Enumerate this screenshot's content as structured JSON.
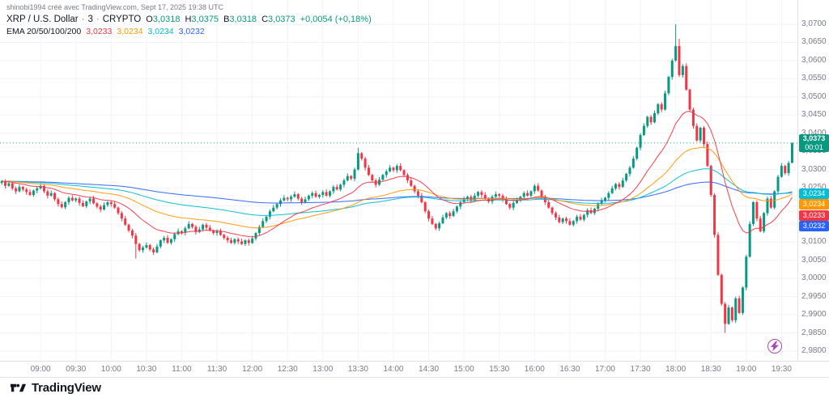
{
  "attribution": "shinobi1994 créé avec TradingView.com, Sept 17, 2025 19:38 UTC",
  "legend": {
    "symbol": "XRP / U.S. Dollar",
    "separator": "·",
    "interval": "3",
    "market": "CRYPTO",
    "ohlc": [
      {
        "label": "O",
        "value": "3,0318"
      },
      {
        "label": "H",
        "value": "3,0375"
      },
      {
        "label": "B",
        "value": "3,0318"
      },
      {
        "label": "C",
        "value": "3,0373"
      }
    ],
    "change": "+0,0054 (+0,18%)",
    "ema_title": "EMA 20/50/100/200"
  },
  "footer": {
    "brand": "TradingView"
  },
  "chart_data": {
    "type": "candlestick",
    "title": "XRP / U.S. Dollar · 3 · CRYPTO",
    "interval_minutes": 3,
    "up_color": "#089981",
    "down_color": "#f23645",
    "grid_color": "#f0f3fa",
    "last": {
      "open": 3.0318,
      "high": 3.0375,
      "low": 3.0318,
      "close": 3.0373,
      "display": "3,0373",
      "countdown": "00:01",
      "change_abs": "+0,0054",
      "change_pct": "+0,18%"
    },
    "emas": [
      {
        "period": 20,
        "display": "3,0233",
        "value": 3.0233,
        "color": "#f23645"
      },
      {
        "period": 50,
        "display": "3,0234",
        "value": 3.0234,
        "color": "#ff9800"
      },
      {
        "period": 100,
        "display": "3,0234",
        "value": 3.0234,
        "color": "#00bcd4"
      },
      {
        "period": 200,
        "display": "3,0232",
        "value": 3.0232,
        "color": "#2962ff"
      }
    ],
    "y_axis": {
      "min": 2.98,
      "max": 3.07,
      "step": 0.005
    },
    "x_labels": [
      "09:00",
      "09:30",
      "10:00",
      "10:30",
      "11:00",
      "11:30",
      "12:00",
      "12:30",
      "13:00",
      "13:30",
      "14:00",
      "14:30",
      "15:00",
      "15:30",
      "16:00",
      "16:30",
      "17:00",
      "17:30",
      "18:00",
      "18:30",
      "19:00",
      "19:30"
    ],
    "first_label_bar_index": 11,
    "bars_per_label": 10,
    "closes": [
      3.0268,
      3.0255,
      3.0262,
      3.0248,
      3.024,
      3.0252,
      3.0245,
      3.0238,
      3.023,
      3.0242,
      3.0248,
      3.0255,
      3.024,
      3.0228,
      3.0235,
      3.0218,
      3.0205,
      3.0196,
      3.021,
      3.0222,
      3.0215,
      3.022,
      3.0208,
      3.0199,
      3.0212,
      3.022,
      3.0207,
      3.0198,
      3.019,
      3.0202,
      3.021,
      3.0205,
      3.0195,
      3.018,
      3.0165,
      3.0148,
      3.0132,
      3.0118,
      3.0095,
      3.0078,
      3.0085,
      3.0092,
      3.008,
      3.0072,
      3.0088,
      3.0105,
      3.0112,
      3.0098,
      3.0108,
      3.0122,
      3.013,
      3.0126,
      3.0138,
      3.015,
      3.0142,
      3.0128,
      3.0135,
      3.0148,
      3.014,
      3.0132,
      3.0125,
      3.013,
      3.012,
      3.0112,
      3.0105,
      3.0098,
      3.0108,
      3.0102,
      3.0095,
      3.0105,
      3.0098,
      3.011,
      3.0125,
      3.0142,
      3.0158,
      3.017,
      3.0185,
      3.0195,
      3.0205,
      3.0215,
      3.0222,
      3.0218,
      3.0225,
      3.0232,
      3.022,
      3.021,
      3.0218,
      3.0228,
      3.0235,
      3.0225,
      3.023,
      3.0238,
      3.0228,
      3.024,
      3.0252,
      3.0245,
      3.0258,
      3.027,
      3.0282,
      3.0275,
      3.03,
      3.0345,
      3.033,
      3.0305,
      3.0285,
      3.027,
      3.0258,
      3.0272,
      3.0285,
      3.0295,
      3.0305,
      3.0298,
      3.031,
      3.0298,
      3.0285,
      3.027,
      3.0255,
      3.024,
      3.0228,
      3.021,
      3.0185,
      3.0165,
      3.015,
      3.0138,
      3.0152,
      3.0168,
      3.018,
      3.0172,
      3.0185,
      3.0198,
      3.021,
      3.0218,
      3.0225,
      3.0215,
      3.0228,
      3.0238,
      3.023,
      3.022,
      3.0212,
      3.0225,
      3.0232,
      3.0228,
      3.0218,
      3.0205,
      3.0195,
      3.0208,
      3.0215,
      3.0225,
      3.0235,
      3.0228,
      3.024,
      3.0255,
      3.0242,
      3.0225,
      3.021,
      3.0195,
      3.018,
      3.0168,
      3.0155,
      3.0165,
      3.0158,
      3.0148,
      3.0158,
      3.017,
      3.0162,
      3.0175,
      3.0188,
      3.018,
      3.0192,
      3.0205,
      3.0215,
      3.0222,
      3.0235,
      3.0248,
      3.026,
      3.0252,
      3.027,
      3.0288,
      3.0305,
      3.033,
      3.036,
      3.0395,
      3.042,
      3.0445,
      3.043,
      3.0455,
      3.048,
      3.0465,
      3.051,
      3.0555,
      3.06,
      3.064,
      3.056,
      3.0585,
      3.052,
      3.0465,
      3.042,
      3.038,
      3.0415,
      3.037,
      3.031,
      3.023,
      3.012,
      3.001,
      2.993,
      2.9875,
      2.992,
      2.9885,
      2.9945,
      2.9905,
      2.9975,
      3.006,
      3.015,
      3.021,
      3.0165,
      3.013,
      3.018,
      3.022,
      3.0195,
      3.024,
      3.028,
      3.031,
      3.029,
      3.0318,
      3.0373
    ],
    "wick_overrides": [
      {
        "index": 38,
        "low": 3.0055
      },
      {
        "index": 101,
        "high": 3.036
      },
      {
        "index": 191,
        "high": 3.07
      },
      {
        "index": 192,
        "high": 3.066
      },
      {
        "index": 205,
        "low": 2.985
      },
      {
        "index": 224,
        "high": 3.0375,
        "low": 3.0318
      }
    ]
  }
}
